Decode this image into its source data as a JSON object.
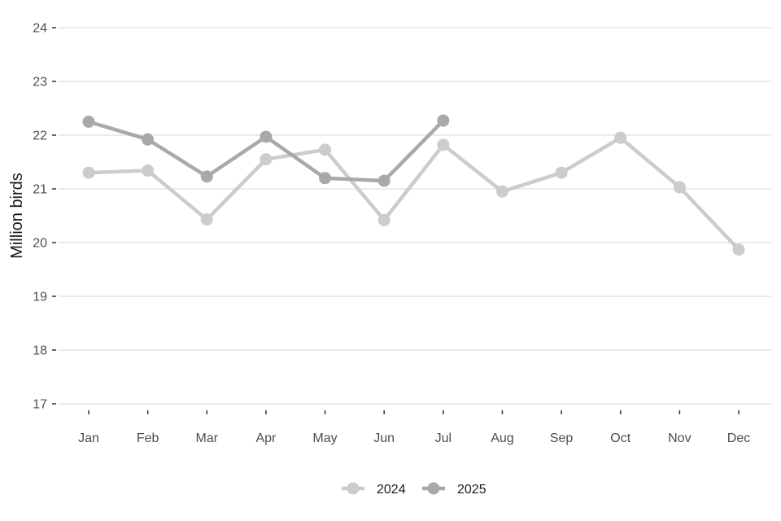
{
  "chart_data": {
    "type": "line",
    "title": "",
    "xlabel": "",
    "ylabel": "Million birds",
    "categories": [
      "Jan",
      "Feb",
      "Mar",
      "Apr",
      "May",
      "Jun",
      "Jul",
      "Aug",
      "Sep",
      "Oct",
      "Nov",
      "Dec"
    ],
    "ylim": [
      17,
      24
    ],
    "yticks": [
      17,
      18,
      19,
      20,
      21,
      22,
      23,
      24
    ],
    "grid": "horizontal",
    "legend_position": "bottom",
    "series": [
      {
        "name": "2024",
        "color": "#cccccc",
        "values": [
          21.3,
          21.34,
          20.43,
          21.55,
          21.73,
          20.42,
          21.82,
          20.95,
          21.3,
          21.95,
          21.03,
          19.87
        ]
      },
      {
        "name": "2025",
        "color": "#aba8a8",
        "values": [
          22.25,
          21.92,
          21.23,
          21.97,
          21.2,
          21.15,
          22.27,
          null,
          null,
          null,
          null,
          null
        ]
      }
    ]
  }
}
